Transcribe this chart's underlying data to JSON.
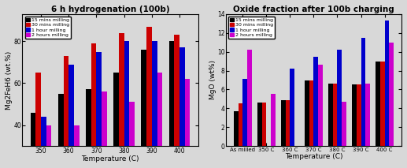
{
  "left_title": "6 h hydrogenation (100b)",
  "left_xlabel": "Temperature (C)",
  "left_ylabel": "Mg2FeH6 (wt.%)",
  "left_categories": [
    "350",
    "360",
    "370",
    "380",
    "390",
    "400"
  ],
  "left_ylim": [
    30,
    93
  ],
  "left_yticks": [
    40,
    60,
    80
  ],
  "left_series": {
    "15 mins milling": [
      46,
      55,
      57,
      65,
      76,
      80
    ],
    "30 mins milling": [
      65,
      73,
      79,
      84,
      87,
      83
    ],
    "1 hour milling": [
      44,
      69,
      75,
      80,
      80,
      77
    ],
    "2 hours milling": [
      40,
      40,
      56,
      51,
      65,
      62
    ]
  },
  "right_title": "Oxide fraction after 100b charging",
  "right_xlabel": "Temperature (C)",
  "right_ylabel": "MgO (wt%)",
  "right_categories": [
    "As milled",
    "350 C",
    "360 C",
    "370 C",
    "380 C",
    "390 C",
    "400 C"
  ],
  "right_ylim": [
    0,
    14
  ],
  "right_yticks": [
    0,
    2,
    4,
    6,
    8,
    10,
    12,
    14
  ],
  "right_series": {
    "15 mins milling": [
      3.7,
      4.6,
      4.9,
      7.0,
      6.6,
      6.5,
      9.0
    ],
    "30 mins milling": [
      4.5,
      4.6,
      4.9,
      7.0,
      6.6,
      6.5,
      9.0
    ],
    "1 hour milling": [
      7.1,
      -1.0,
      8.2,
      9.5,
      10.2,
      11.5,
      13.3
    ],
    "2 hours milling": [
      10.2,
      5.5,
      -1.0,
      8.6,
      4.7,
      6.6,
      11.0
    ]
  },
  "colors": {
    "15 mins milling": "#000000",
    "30 mins milling": "#cc0000",
    "1 hour milling": "#0000cc",
    "2 hours milling": "#cc00cc"
  },
  "bar_width": 0.19,
  "legend_fontsize": 4.5,
  "tick_fontsize": 5.5,
  "label_fontsize": 6.5,
  "title_fontsize": 7.5,
  "bg_color": "#d8d8d8"
}
